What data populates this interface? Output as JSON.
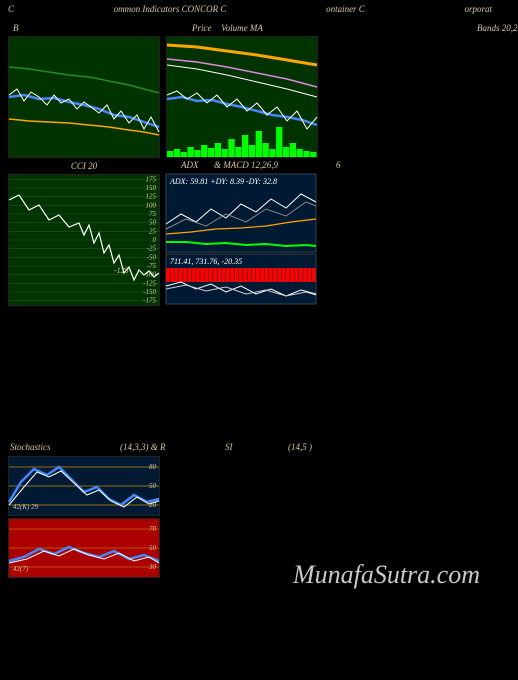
{
  "header": {
    "left": "C",
    "center1": "ommon  Indicators CONCOR C",
    "center2": "ontainer C",
    "right": "orporat"
  },
  "watermark": "MunafaSutra.com",
  "row1": {
    "panel_a": {
      "title_left": "B",
      "width": 150,
      "height": 120,
      "bg": "#003300",
      "lines": [
        {
          "color": "#228b22",
          "width": 1.5,
          "points": [
            [
              0,
              30
            ],
            [
              20,
              32
            ],
            [
              40,
              35
            ],
            [
              60,
              38
            ],
            [
              80,
              40
            ],
            [
              100,
              44
            ],
            [
              120,
              48
            ],
            [
              135,
              52
            ],
            [
              150,
              56
            ]
          ]
        },
        {
          "color": "#ffa500",
          "width": 1.5,
          "points": [
            [
              0,
              82
            ],
            [
              20,
              84
            ],
            [
              40,
              85
            ],
            [
              60,
              86
            ],
            [
              80,
              88
            ],
            [
              100,
              90
            ],
            [
              120,
              93
            ],
            [
              135,
              95
            ],
            [
              150,
              98
            ]
          ]
        },
        {
          "color": "#4488ff",
          "width": 2.5,
          "points": [
            [
              0,
              60
            ],
            [
              15,
              58
            ],
            [
              30,
              62
            ],
            [
              45,
              61
            ],
            [
              60,
              65
            ],
            [
              75,
              68
            ],
            [
              90,
              72
            ],
            [
              105,
              78
            ],
            [
              120,
              80
            ],
            [
              135,
              85
            ],
            [
              150,
              90
            ]
          ]
        },
        {
          "color": "#ffffff",
          "width": 1,
          "points": [
            [
              0,
              58
            ],
            [
              8,
              52
            ],
            [
              15,
              64
            ],
            [
              22,
              55
            ],
            [
              30,
              60
            ],
            [
              38,
              68
            ],
            [
              45,
              58
            ],
            [
              52,
              66
            ],
            [
              60,
              62
            ],
            [
              68,
              72
            ],
            [
              75,
              65
            ],
            [
              82,
              70
            ],
            [
              90,
              76
            ],
            [
              98,
              68
            ],
            [
              105,
              82
            ],
            [
              112,
              74
            ],
            [
              120,
              86
            ],
            [
              128,
              78
            ],
            [
              135,
              92
            ],
            [
              142,
              80
            ],
            [
              150,
              95
            ]
          ]
        }
      ]
    },
    "panel_b": {
      "title_left": "Price",
      "title_center": "Volume  MA",
      "title_right": "Bands 20,2",
      "width": 150,
      "height": 120,
      "bg": "#003300",
      "lines": [
        {
          "color": "#ffa500",
          "width": 3,
          "points": [
            [
              0,
              8
            ],
            [
              30,
              10
            ],
            [
              60,
              14
            ],
            [
              90,
              18
            ],
            [
              120,
              23
            ],
            [
              150,
              28
            ]
          ]
        },
        {
          "color": "#dd88dd",
          "width": 1.5,
          "points": [
            [
              0,
              22
            ],
            [
              30,
              25
            ],
            [
              60,
              30
            ],
            [
              90,
              36
            ],
            [
              120,
              42
            ],
            [
              150,
              50
            ]
          ]
        },
        {
          "color": "#ffffff",
          "width": 1,
          "points": [
            [
              0,
              28
            ],
            [
              30,
              32
            ],
            [
              60,
              38
            ],
            [
              90,
              45
            ],
            [
              120,
              52
            ],
            [
              150,
              60
            ]
          ]
        },
        {
          "color": "#4488ff",
          "width": 2.5,
          "points": [
            [
              0,
              62
            ],
            [
              15,
              60
            ],
            [
              30,
              64
            ],
            [
              45,
              63
            ],
            [
              60,
              67
            ],
            [
              75,
              70
            ],
            [
              90,
              74
            ],
            [
              105,
              78
            ],
            [
              120,
              80
            ],
            [
              135,
              83
            ],
            [
              150,
              88
            ]
          ]
        },
        {
          "color": "#ffffff",
          "width": 1,
          "points": [
            [
              0,
              58
            ],
            [
              10,
              54
            ],
            [
              20,
              62
            ],
            [
              30,
              56
            ],
            [
              40,
              66
            ],
            [
              50,
              58
            ],
            [
              60,
              70
            ],
            [
              70,
              62
            ],
            [
              80,
              74
            ],
            [
              90,
              66
            ],
            [
              100,
              78
            ],
            [
              110,
              70
            ],
            [
              120,
              84
            ],
            [
              130,
              74
            ],
            [
              140,
              92
            ],
            [
              150,
              80
            ]
          ]
        }
      ],
      "volume_bars": {
        "color": "#00ff00",
        "heights": [
          6,
          8,
          5,
          10,
          7,
          12,
          9,
          14,
          8,
          18,
          10,
          22,
          12,
          26,
          14,
          8,
          30,
          10,
          14,
          8,
          6,
          5
        ]
      }
    }
  },
  "row2": {
    "panel_a": {
      "title_center": "CCI 20",
      "width": 150,
      "height": 130,
      "bg": "#003300",
      "yticks": [
        175,
        150,
        125,
        100,
        75,
        50,
        25,
        0,
        -25,
        -50,
        -75,
        -100,
        -125,
        -150,
        -175
      ],
      "grid_color": "#225522",
      "line": {
        "color": "#ffffff",
        "width": 1.2,
        "points": [
          [
            0,
            25
          ],
          [
            10,
            20
          ],
          [
            20,
            35
          ],
          [
            30,
            30
          ],
          [
            40,
            45
          ],
          [
            50,
            40
          ],
          [
            60,
            52
          ],
          [
            70,
            48
          ],
          [
            75,
            60
          ],
          [
            80,
            50
          ],
          [
            85,
            68
          ],
          [
            90,
            58
          ],
          [
            95,
            78
          ],
          [
            100,
            70
          ],
          [
            105,
            88
          ],
          [
            110,
            80
          ],
          [
            115,
            98
          ],
          [
            120,
            92
          ],
          [
            125,
            105
          ],
          [
            130,
            95
          ],
          [
            135,
            100
          ],
          [
            140,
            96
          ],
          [
            145,
            102
          ],
          [
            150,
            98
          ]
        ]
      },
      "annotation": "-128"
    },
    "panel_b": {
      "width": 150,
      "height": 130,
      "sub_top": {
        "height": 78,
        "bg": "#001a33",
        "label": "ADX: 59.81 +DY: 8.39 -DY: 32.8",
        "right_label": "6",
        "title_left": "ADX",
        "title_right": "& MACD 12,26,9",
        "lines": [
          {
            "color": "#ffffff",
            "width": 1,
            "points": [
              [
                0,
                50
              ],
              [
                15,
                40
              ],
              [
                30,
                48
              ],
              [
                45,
                35
              ],
              [
                60,
                44
              ],
              [
                75,
                30
              ],
              [
                90,
                38
              ],
              [
                105,
                25
              ],
              [
                120,
                34
              ],
              [
                135,
                20
              ],
              [
                150,
                28
              ]
            ]
          },
          {
            "color": "#888888",
            "width": 1,
            "points": [
              [
                0,
                55
              ],
              [
                20,
                45
              ],
              [
                40,
                52
              ],
              [
                60,
                40
              ],
              [
                80,
                48
              ],
              [
                100,
                35
              ],
              [
                120,
                42
              ],
              [
                140,
                28
              ],
              [
                150,
                32
              ]
            ]
          },
          {
            "color": "#ffa500",
            "width": 1.2,
            "points": [
              [
                0,
                60
              ],
              [
                25,
                58
              ],
              [
                50,
                55
              ],
              [
                75,
                54
              ],
              [
                100,
                52
              ],
              [
                125,
                48
              ],
              [
                150,
                45
              ]
            ]
          },
          {
            "color": "#00ff00",
            "width": 2,
            "points": [
              [
                0,
                68
              ],
              [
                20,
                68
              ],
              [
                40,
                70
              ],
              [
                60,
                69
              ],
              [
                80,
                71
              ],
              [
                100,
                70
              ],
              [
                120,
                72
              ],
              [
                140,
                71
              ],
              [
                150,
                72
              ]
            ]
          }
        ]
      },
      "sub_bot": {
        "height": 50,
        "bg": "#001a33",
        "label": "711.41, 731.76, -20.35",
        "bars": {
          "color": "#ff0000",
          "count": 35
        },
        "lines": [
          {
            "color": "#ffffff",
            "width": 1,
            "points": [
              [
                0,
                32
              ],
              [
                15,
                28
              ],
              [
                30,
                35
              ],
              [
                45,
                30
              ],
              [
                60,
                38
              ],
              [
                75,
                32
              ],
              [
                90,
                40
              ],
              [
                105,
                35
              ],
              [
                120,
                42
              ],
              [
                135,
                36
              ],
              [
                150,
                40
              ]
            ]
          },
          {
            "color": "#cccccc",
            "width": 1,
            "points": [
              [
                0,
                35
              ],
              [
                20,
                31
              ],
              [
                40,
                37
              ],
              [
                60,
                33
              ],
              [
                80,
                40
              ],
              [
                100,
                36
              ],
              [
                120,
                42
              ],
              [
                140,
                38
              ],
              [
                150,
                41
              ]
            ]
          }
        ]
      }
    }
  },
  "row3": {
    "title_left": "Stochastics",
    "title_mid1": "(14,3,3) & R",
    "title_mid2": "SI",
    "title_right": "(14,5                               )",
    "panel_a": {
      "width": 150,
      "height": 58,
      "bg": "#001a33",
      "yticks": [
        80,
        50,
        20
      ],
      "grid_color": "#cc8800",
      "annotation": "42(K) 29",
      "lines": [
        {
          "color": "#4488ff",
          "width": 2.5,
          "points": [
            [
              0,
              45
            ],
            [
              12,
              25
            ],
            [
              25,
              12
            ],
            [
              38,
              18
            ],
            [
              50,
              10
            ],
            [
              62,
              22
            ],
            [
              75,
              35
            ],
            [
              88,
              30
            ],
            [
              100,
              42
            ],
            [
              112,
              48
            ],
            [
              125,
              38
            ],
            [
              138,
              45
            ],
            [
              150,
              42
            ]
          ]
        },
        {
          "color": "#ffffff",
          "width": 1,
          "points": [
            [
              0,
              48
            ],
            [
              15,
              30
            ],
            [
              28,
              15
            ],
            [
              40,
              20
            ],
            [
              52,
              14
            ],
            [
              65,
              26
            ],
            [
              78,
              38
            ],
            [
              90,
              33
            ],
            [
              102,
              44
            ],
            [
              115,
              50
            ],
            [
              128,
              40
            ],
            [
              140,
              47
            ],
            [
              150,
              44
            ]
          ]
        }
      ]
    },
    "panel_b": {
      "width": 150,
      "height": 58,
      "bg": "#aa0000",
      "yticks": [
        70,
        50,
        30
      ],
      "grid_color": "#cc6600",
      "annotation": "42(7)",
      "lines": [
        {
          "color": "#4488ff",
          "width": 2.5,
          "points": [
            [
              0,
              42
            ],
            [
              15,
              38
            ],
            [
              30,
              30
            ],
            [
              45,
              35
            ],
            [
              60,
              28
            ],
            [
              75,
              34
            ],
            [
              90,
              38
            ],
            [
              105,
              32
            ],
            [
              120,
              40
            ],
            [
              135,
              36
            ],
            [
              150,
              42
            ]
          ]
        },
        {
          "color": "#ffffff",
          "width": 1,
          "points": [
            [
              0,
              44
            ],
            [
              18,
              40
            ],
            [
              35,
              32
            ],
            [
              50,
              37
            ],
            [
              65,
              30
            ],
            [
              80,
              36
            ],
            [
              95,
              40
            ],
            [
              110,
              34
            ],
            [
              125,
              42
            ],
            [
              140,
              38
            ],
            [
              150,
              44
            ]
          ]
        }
      ]
    }
  }
}
